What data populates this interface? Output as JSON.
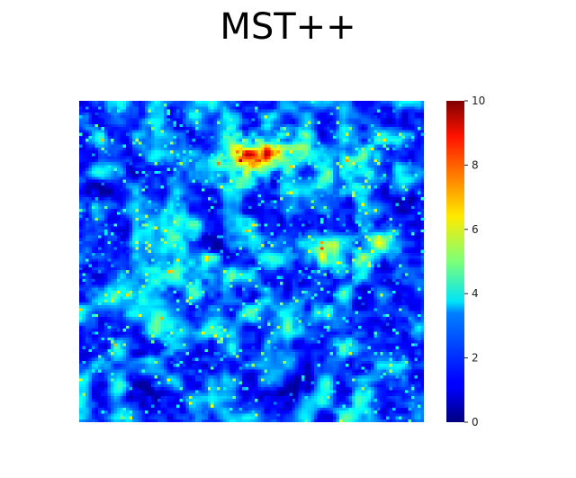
{
  "chart_data": {
    "type": "heatmap",
    "title": "MST++",
    "xlabel": "",
    "ylabel": "",
    "colormap": "jet",
    "value_range": [
      0,
      10
    ],
    "colorbar": {
      "ticks": [
        0,
        2,
        4,
        6,
        8,
        10
      ],
      "tick_labels": [
        "0",
        "2",
        "4",
        "6",
        "8",
        "10"
      ]
    },
    "grid_size": [
      110,
      110
    ],
    "typical_values": {
      "background": 1.4,
      "leaf_texture": 3.0,
      "highlight_regions": 6.0,
      "max_hotspots": 8.5
    }
  }
}
